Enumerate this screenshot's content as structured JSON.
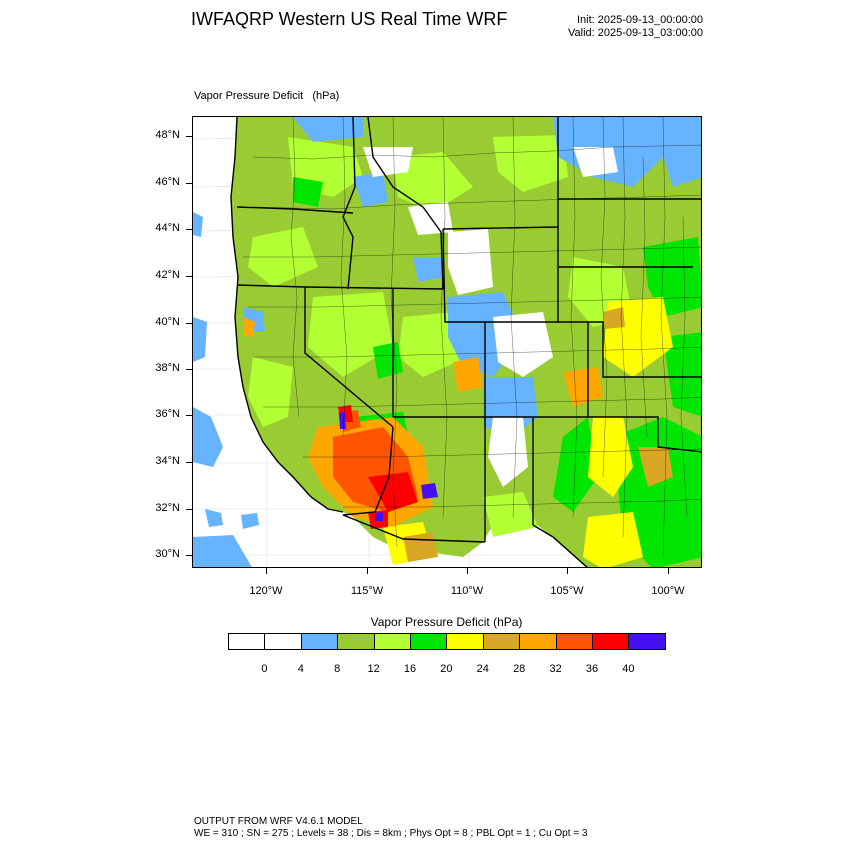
{
  "header": {
    "title": "IWFAQRP Western US Real Time WRF",
    "init": "Init: 2025-09-13_00:00:00",
    "valid": "Valid: 2025-09-13_03:00:00"
  },
  "panel": {
    "label": "Vapor Pressure Deficit   (hPa)"
  },
  "map": {
    "lat_labels": [
      "48°N",
      "46°N",
      "44°N",
      "42°N",
      "40°N",
      "38°N",
      "36°N",
      "34°N",
      "32°N",
      "30°N"
    ],
    "lon_labels": [
      "120°W",
      "115°W",
      "110°W",
      "105°W",
      "100°W"
    ],
    "colors": {
      "c0": "#ffffff",
      "c4": "#66b3ff",
      "c8": "#99cc33",
      "c12": "#b2ff33",
      "c16": "#00e600",
      "c20": "#ffff00",
      "c24": "#d9a626",
      "c28": "#ffa600",
      "c32": "#ff5500",
      "c36": "#ff0000",
      "c40": "#4411ee"
    }
  },
  "colorbar": {
    "title": "Vapor Pressure Deficit  (hPa)",
    "colors": [
      "#ffffff",
      "#ffffff",
      "#66b3ff",
      "#99cc33",
      "#b2ff33",
      "#00e600",
      "#ffff00",
      "#d9a626",
      "#ffa600",
      "#ff5500",
      "#ff0000",
      "#4411ee"
    ],
    "labels": [
      "0",
      "4",
      "8",
      "12",
      "16",
      "20",
      "24",
      "28",
      "32",
      "36",
      "40"
    ]
  },
  "footer": {
    "line1": "OUTPUT FROM WRF V4.6.1 MODEL",
    "line2": "WE = 310 ; SN = 275 ; Levels = 38 ; Dis = 8km ; Phys Opt = 8 ; PBL Opt = 1 ; Cu Opt = 3"
  }
}
